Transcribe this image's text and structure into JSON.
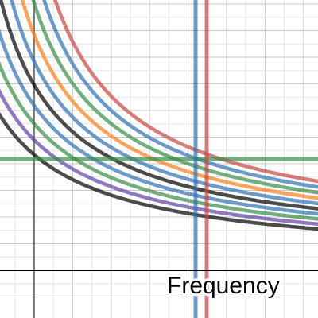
{
  "axis_label": "Frequency"
}
